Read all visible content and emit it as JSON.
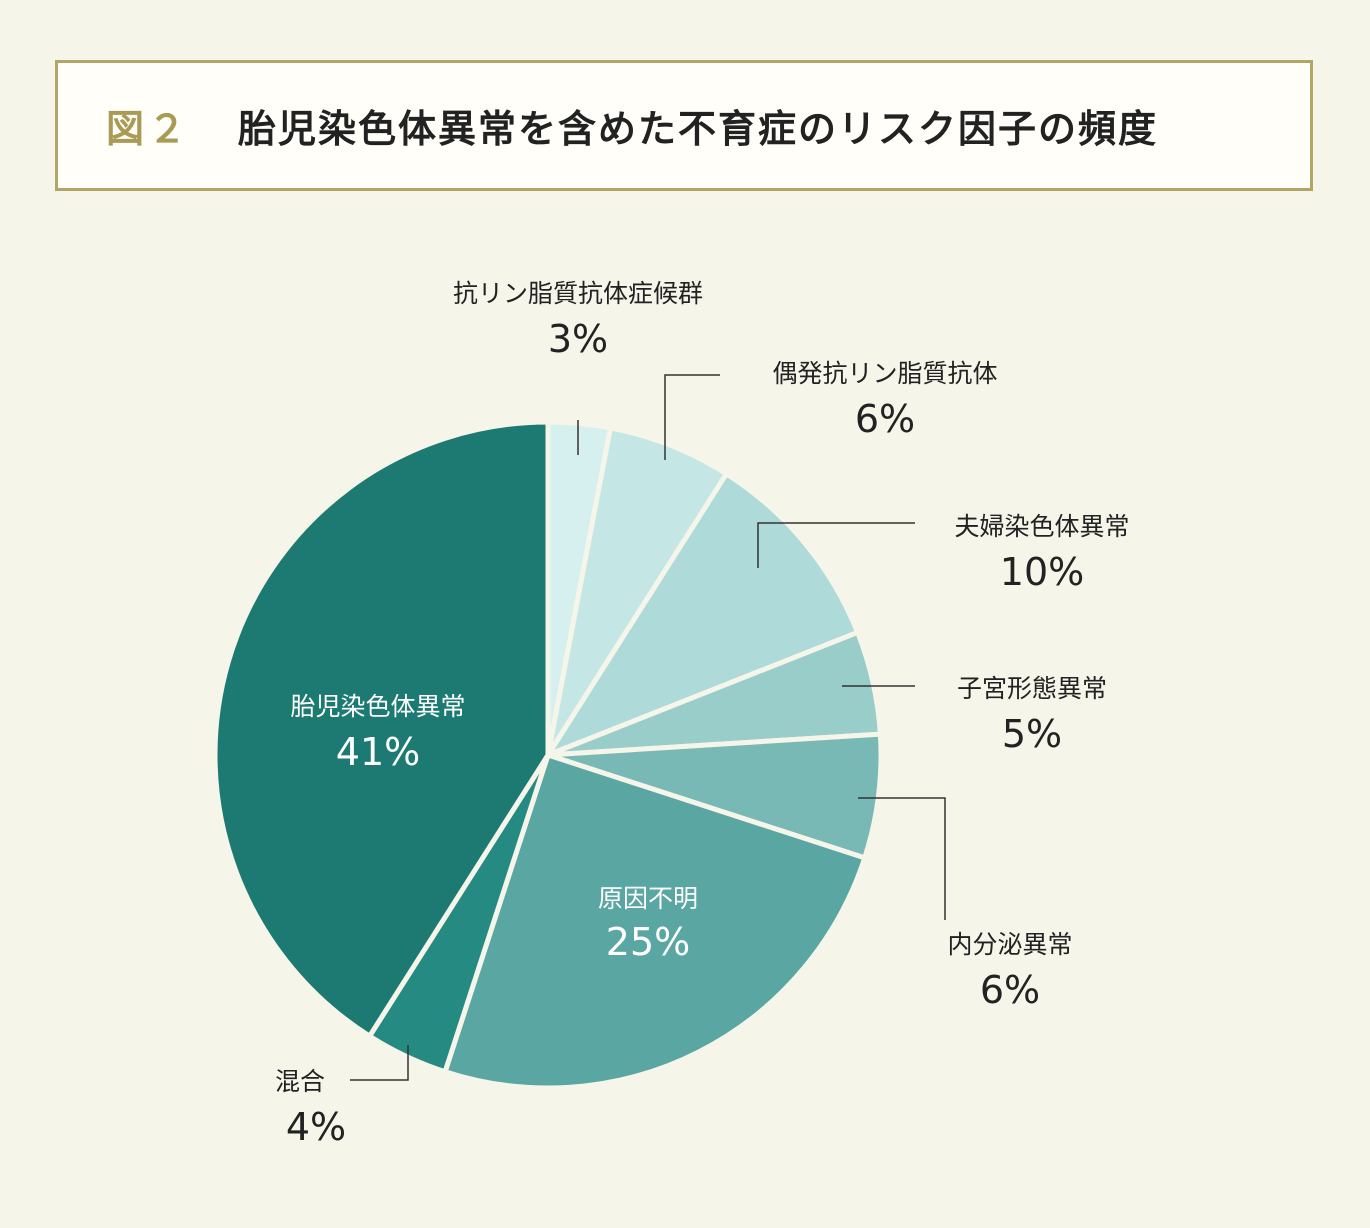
{
  "header": {
    "figure_number": "図２",
    "title": "胎児染色体異常を含めた不育症のリスク因子の頻度"
  },
  "chart_data": {
    "type": "pie",
    "title": "胎児染色体異常を含めた不育症のリスク因子の頻度",
    "slices": [
      {
        "label": "抗リン脂質抗体症候群",
        "value": 3,
        "value_label": "3%",
        "color": "#d5f0ef"
      },
      {
        "label": "偶発抗リン脂質抗体",
        "value": 6,
        "value_label": "6%",
        "color": "#c4e7e5"
      },
      {
        "label": "夫婦染色体異常",
        "value": 10,
        "value_label": "10%",
        "color": "#aedbd9"
      },
      {
        "label": "子宮形態異常",
        "value": 5,
        "value_label": "5%",
        "color": "#99cdca"
      },
      {
        "label": "内分泌異常",
        "value": 6,
        "value_label": "6%",
        "color": "#79b9b5"
      },
      {
        "label": "原因不明",
        "value": 25,
        "value_label": "25%",
        "color": "#5aa6a3"
      },
      {
        "label": "混合",
        "value": 4,
        "value_label": "4%",
        "color": "#258a82"
      },
      {
        "label": "胎児染色体異常",
        "value": 41,
        "value_label": "41%",
        "color": "#1c7a73"
      }
    ]
  }
}
